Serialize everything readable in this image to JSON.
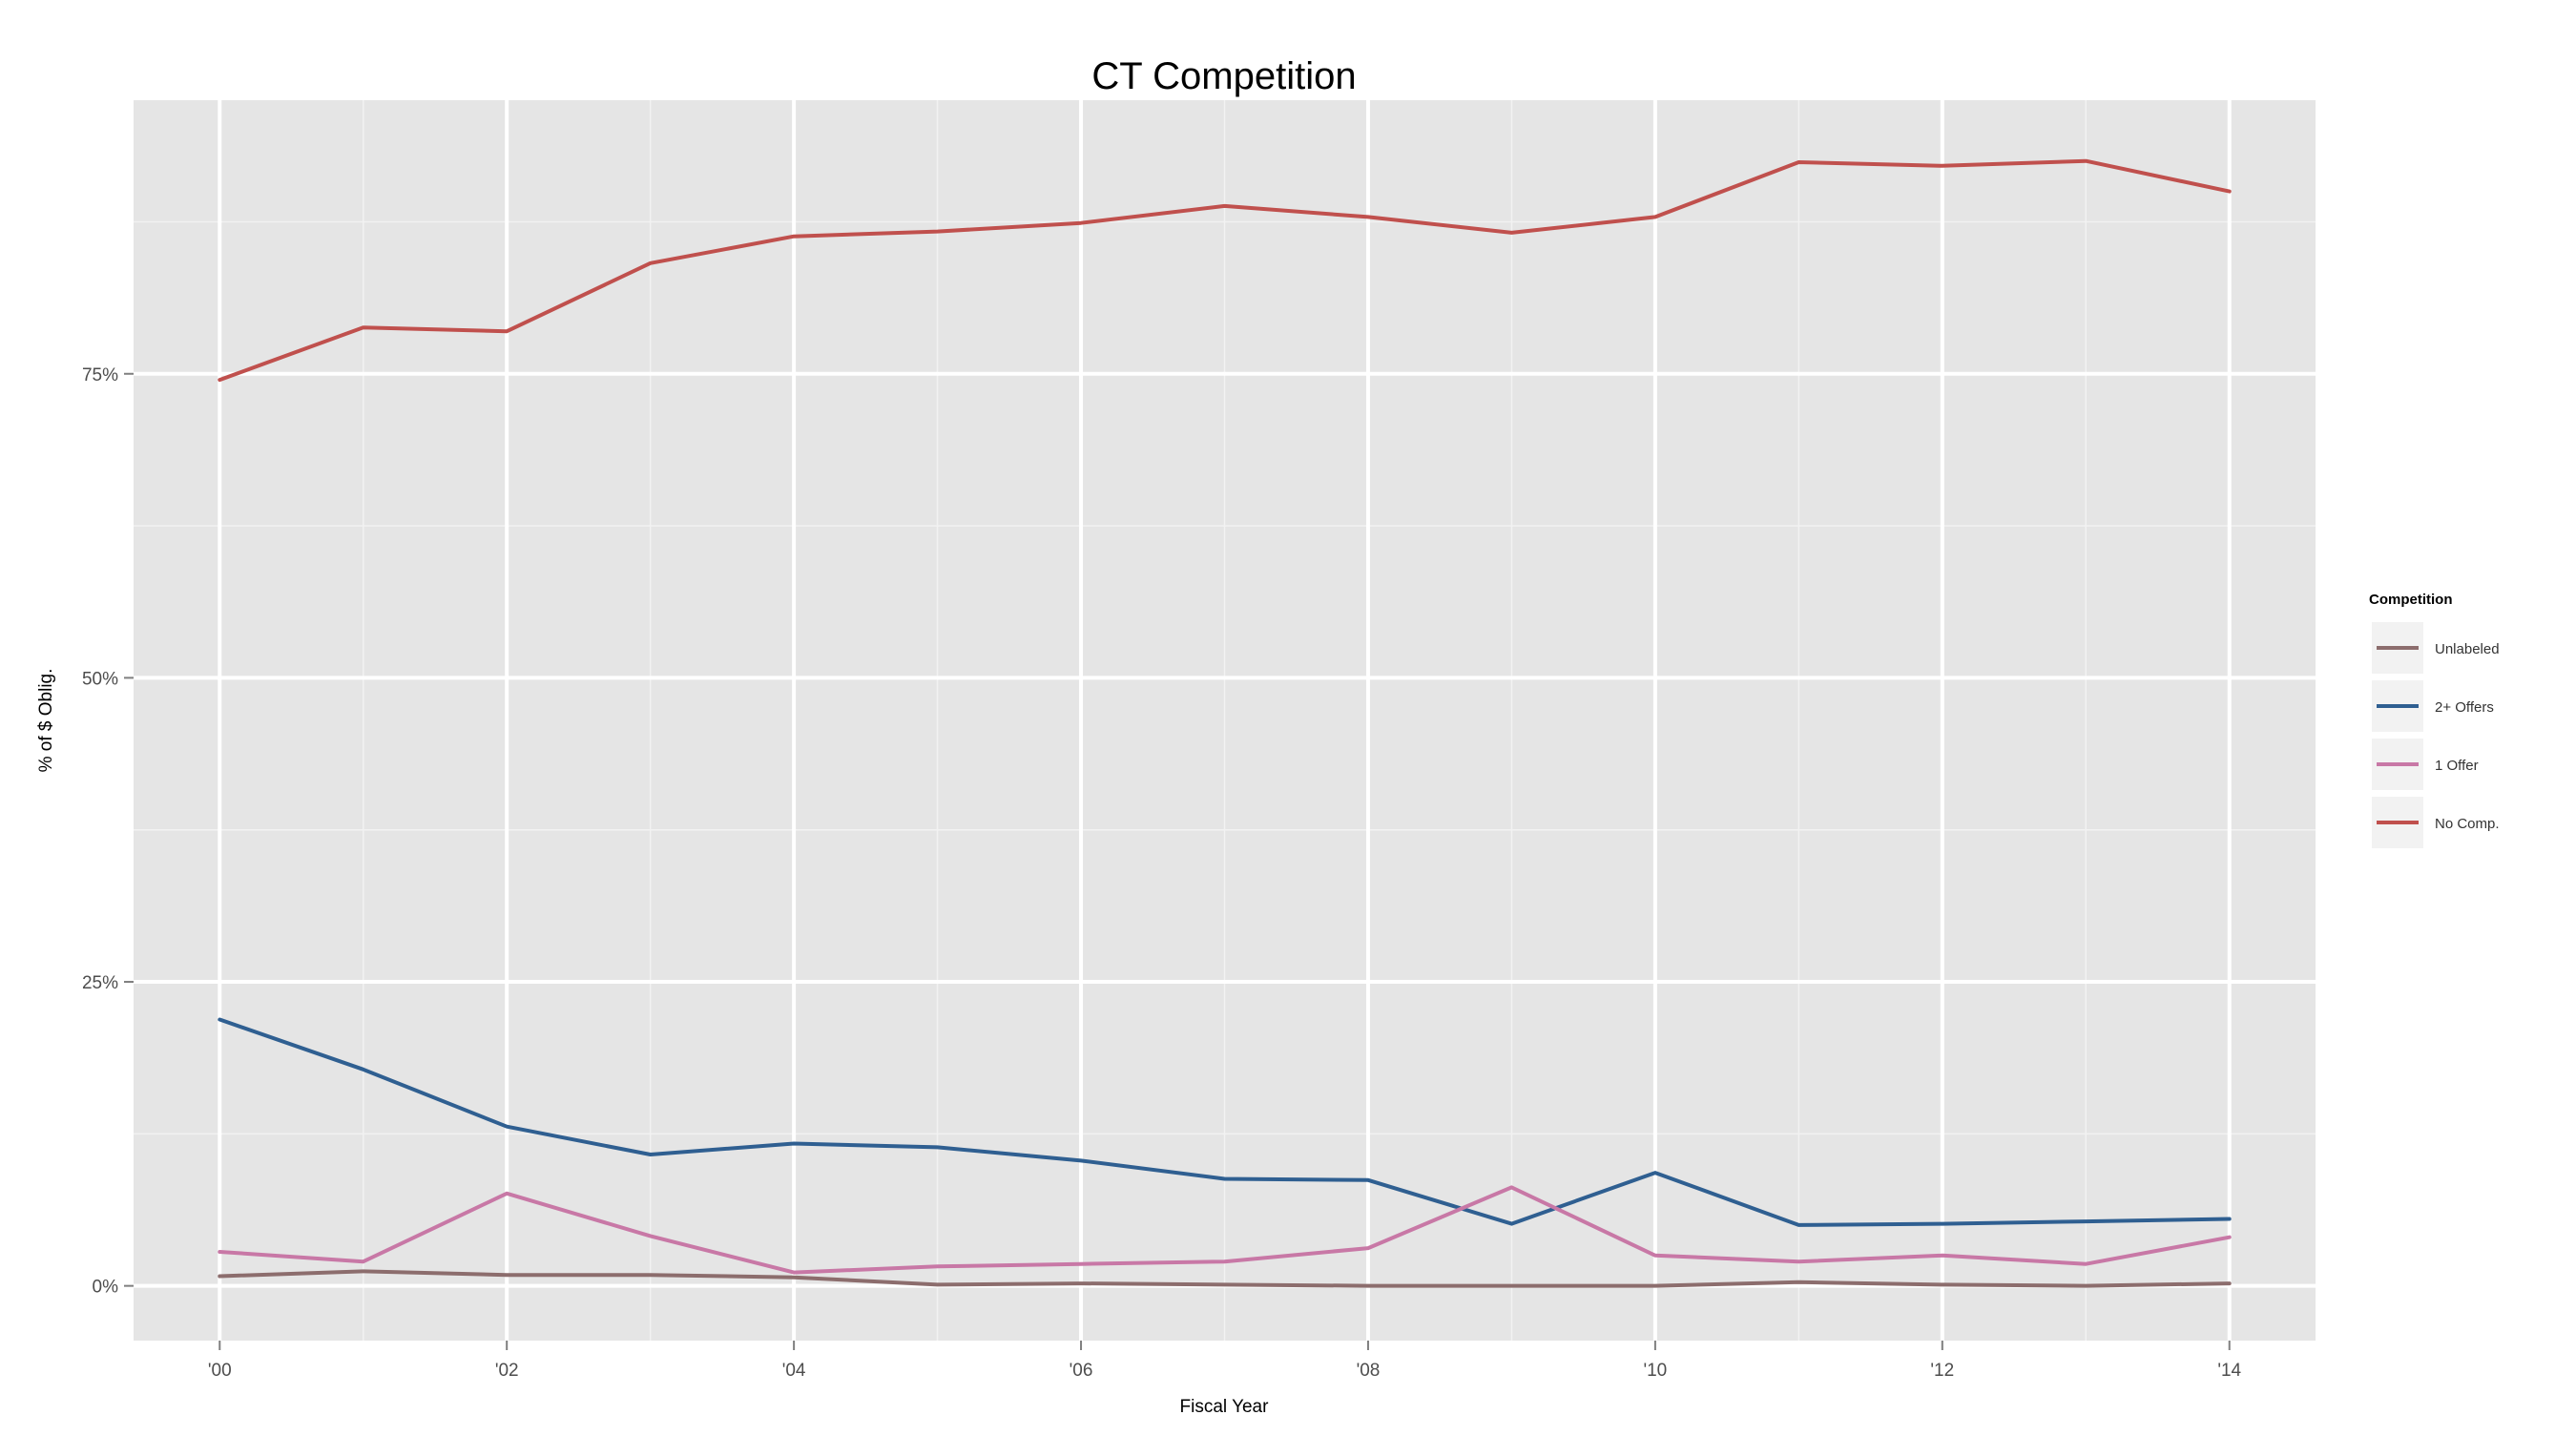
{
  "chart_data": {
    "type": "line",
    "title": "CT Competition",
    "xlabel": "Fiscal Year",
    "ylabel": "% of $ Oblig.",
    "x": [
      2000,
      2001,
      2002,
      2003,
      2004,
      2005,
      2006,
      2007,
      2008,
      2009,
      2010,
      2011,
      2012,
      2013,
      2014
    ],
    "xlim": [
      1999.4,
      2014.6
    ],
    "ylim": [
      -4.5,
      97.5
    ],
    "x_ticks": [
      {
        "value": 2000,
        "label": "'00"
      },
      {
        "value": 2002,
        "label": "'02"
      },
      {
        "value": 2004,
        "label": "'04"
      },
      {
        "value": 2006,
        "label": "'06"
      },
      {
        "value": 2008,
        "label": "'08"
      },
      {
        "value": 2010,
        "label": "'10"
      },
      {
        "value": 2012,
        "label": "'12"
      },
      {
        "value": 2014,
        "label": "'14"
      }
    ],
    "y_ticks": [
      {
        "value": 0,
        "label": "0%"
      },
      {
        "value": 25,
        "label": "25%"
      },
      {
        "value": 50,
        "label": "50%"
      },
      {
        "value": 75,
        "label": "75%"
      }
    ],
    "y_minor_ticks": [
      12.5,
      37.5,
      62.5,
      87.5
    ],
    "grid": true,
    "legend": {
      "title": "Competition",
      "placement": "right"
    },
    "series": [
      {
        "name": "Unlabeled",
        "color": "#8c6d6d",
        "values": [
          0.8,
          1.2,
          0.9,
          0.9,
          0.7,
          0.1,
          0.2,
          0.1,
          0.0,
          0.0,
          0.0,
          0.3,
          0.1,
          0.0,
          0.2
        ]
      },
      {
        "name": "2+ Offers",
        "color": "#2f5f91",
        "values": [
          21.9,
          17.8,
          13.1,
          10.8,
          11.7,
          11.4,
          10.3,
          8.8,
          8.7,
          5.1,
          9.3,
          5.0,
          5.1,
          5.3,
          5.5
        ]
      },
      {
        "name": "1 Offer",
        "color": "#c878a6",
        "values": [
          2.8,
          2.0,
          7.6,
          4.1,
          1.1,
          1.6,
          1.8,
          2.0,
          3.1,
          8.1,
          2.5,
          2.0,
          2.5,
          1.8,
          4.0
        ]
      },
      {
        "name": "No Comp.",
        "color": "#c0504d",
        "values": [
          74.5,
          78.8,
          78.5,
          84.1,
          86.3,
          86.7,
          87.4,
          88.8,
          87.9,
          86.6,
          87.9,
          92.4,
          92.1,
          92.5,
          90.0
        ]
      }
    ]
  }
}
